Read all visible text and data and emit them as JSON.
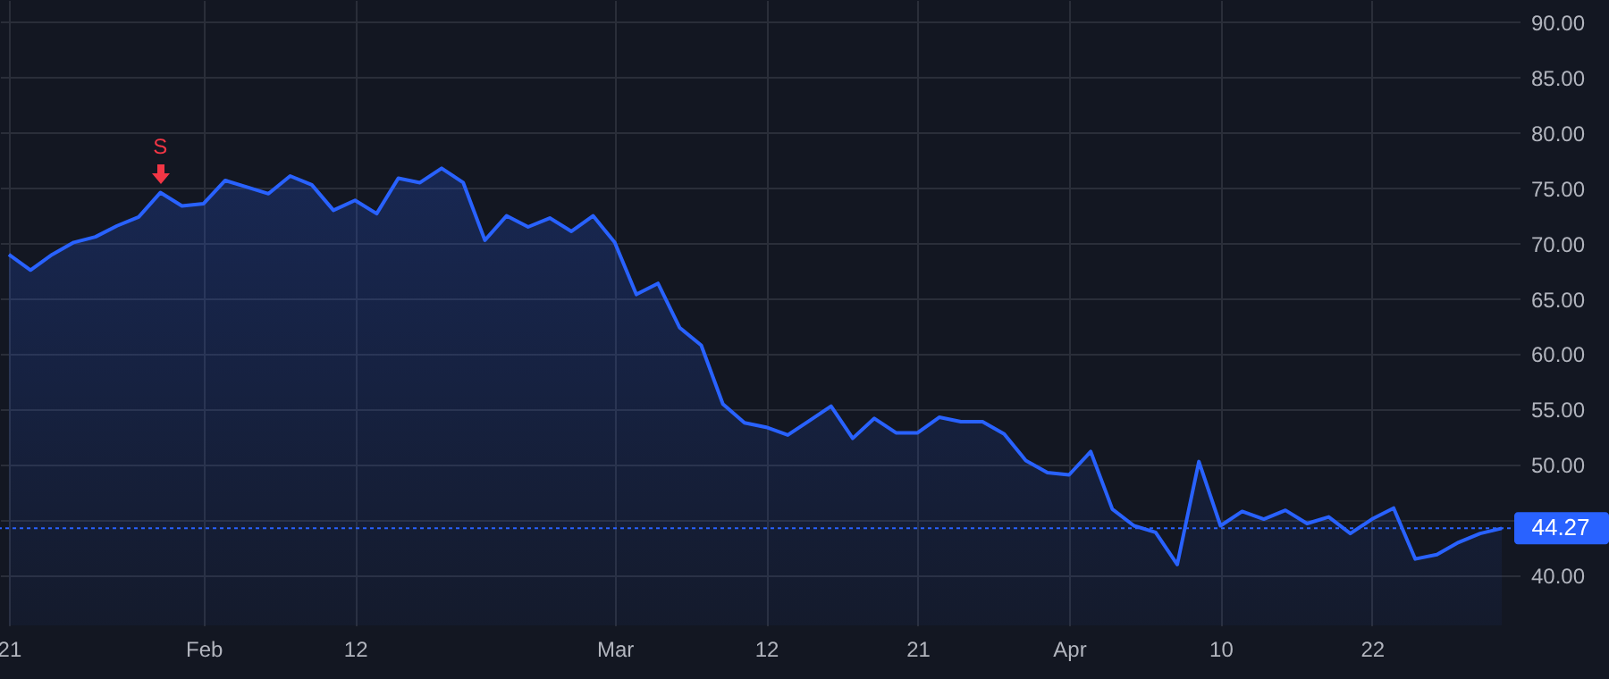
{
  "chart_data": {
    "type": "area",
    "categories": [
      "21",
      null,
      null,
      null,
      null,
      null,
      null,
      null,
      null,
      "Feb",
      null,
      null,
      null,
      null,
      null,
      null,
      "12",
      null,
      null,
      null,
      null,
      null,
      null,
      null,
      null,
      null,
      null,
      null,
      "Mar",
      null,
      null,
      null,
      null,
      null,
      null,
      "12",
      null,
      null,
      null,
      null,
      null,
      null,
      "21",
      null,
      null,
      null,
      null,
      null,
      null,
      "Apr",
      null,
      null,
      null,
      null,
      null,
      null,
      "10",
      null,
      null,
      null,
      null,
      null,
      null,
      "22",
      null,
      null,
      null,
      null,
      null,
      null
    ],
    "series": [
      {
        "color": "#2962ff",
        "values": [
          69.0,
          67.6,
          69.0,
          70.1,
          70.6,
          71.6,
          72.4,
          74.6,
          73.4,
          73.6,
          75.7,
          75.1,
          74.5,
          76.1,
          75.3,
          73.0,
          73.9,
          72.7,
          75.9,
          75.5,
          76.8,
          75.5,
          70.3,
          72.5,
          71.5,
          72.3,
          71.1,
          72.5,
          70.1,
          65.4,
          66.4,
          62.4,
          60.8,
          55.5,
          53.8,
          53.4,
          52.7,
          54.0,
          55.3,
          52.4,
          54.2,
          52.9,
          52.9,
          54.3,
          53.9,
          53.9,
          52.8,
          50.4,
          49.3,
          49.1,
          51.2,
          46.0,
          44.5,
          43.9,
          41.0,
          50.3,
          44.5,
          45.8,
          45.1,
          45.9,
          44.7,
          45.3,
          43.8,
          45.1,
          46.1,
          41.5,
          41.9,
          43.0,
          43.8,
          44.27
        ]
      }
    ],
    "ylim": [
      35.5,
      92
    ],
    "yticks": [
      {
        "value": 40,
        "label": "40.00"
      },
      {
        "value": 45,
        "label": null
      },
      {
        "value": 50,
        "label": "50.00"
      },
      {
        "value": 55,
        "label": "55.00"
      },
      {
        "value": 60,
        "label": "60.00"
      },
      {
        "value": 65,
        "label": "65.00"
      },
      {
        "value": 70,
        "label": "70.00"
      },
      {
        "value": 75,
        "label": "75.00"
      },
      {
        "value": 80,
        "label": "80.00"
      },
      {
        "value": 85,
        "label": "85.00"
      },
      {
        "value": 90,
        "label": "90.00"
      }
    ],
    "ref_lines": [
      {
        "axis": "y",
        "value": 44.27,
        "label": "44.27",
        "color": "#2962ff",
        "line_style": "dotted"
      }
    ],
    "annotations": [
      {
        "text": "S",
        "y": 74.6
      }
    ],
    "grid": true
  }
}
